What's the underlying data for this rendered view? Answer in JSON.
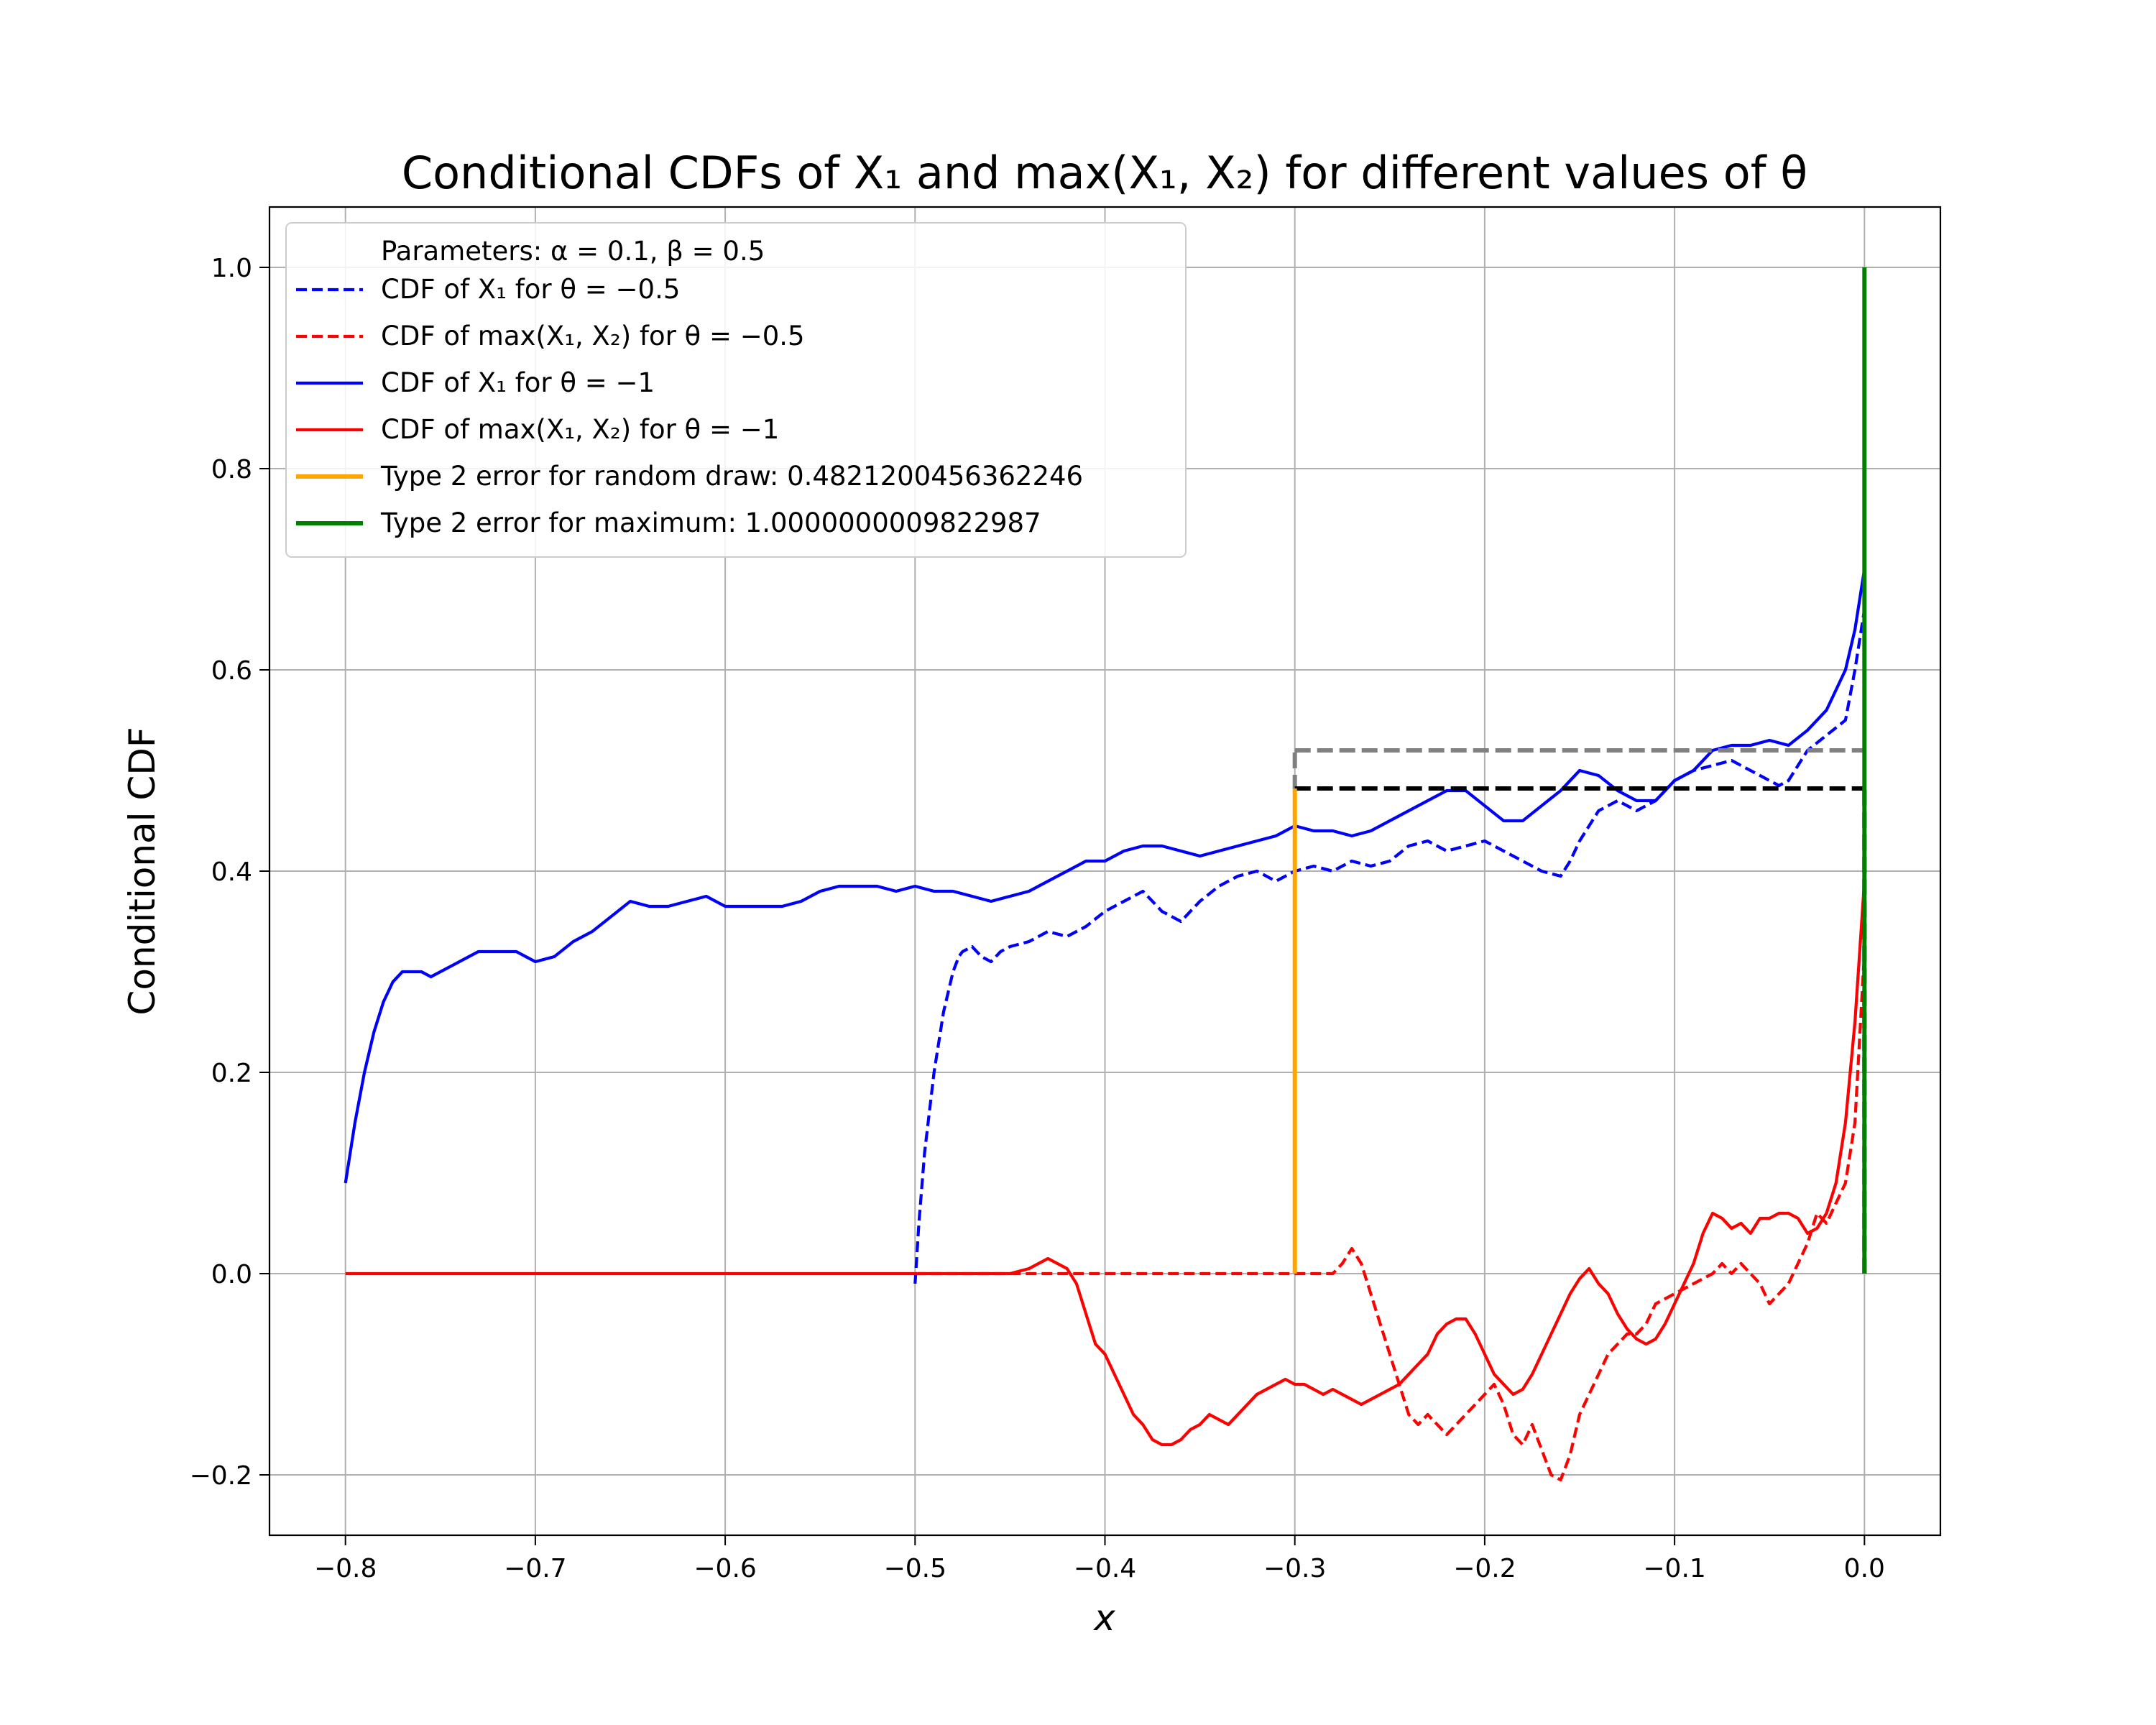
{
  "chart_data": {
    "type": "line",
    "title": "Conditional CDFs of X₁ and max(X₁, X₂) for different values of θ",
    "xlabel": "x",
    "ylabel": "Conditional CDF",
    "xlim": [
      -0.84,
      0.04
    ],
    "ylim": [
      -0.26,
      1.06
    ],
    "grid": true,
    "legend_position": "upper-left",
    "x_ticks": [
      {
        "value": -0.8,
        "label": "−0.8"
      },
      {
        "value": -0.7,
        "label": "−0.7"
      },
      {
        "value": -0.6,
        "label": "−0.6"
      },
      {
        "value": -0.5,
        "label": "−0.5"
      },
      {
        "value": -0.4,
        "label": "−0.4"
      },
      {
        "value": -0.3,
        "label": "−0.3"
      },
      {
        "value": -0.2,
        "label": "−0.2"
      },
      {
        "value": -0.1,
        "label": "−0.1"
      },
      {
        "value": 0.0,
        "label": "0.0"
      }
    ],
    "y_ticks": [
      {
        "value": -0.2,
        "label": "−0.2"
      },
      {
        "value": 0.0,
        "label": "0.0"
      },
      {
        "value": 0.2,
        "label": "0.2"
      },
      {
        "value": 0.4,
        "label": "0.4"
      },
      {
        "value": 0.6,
        "label": "0.6"
      },
      {
        "value": 0.8,
        "label": "0.8"
      },
      {
        "value": 1.0,
        "label": "1.0"
      }
    ],
    "legend_header": "Parameters: α = 0.1, β = 0.5",
    "series": [
      {
        "name": "CDF of X₁ for θ = −0.5",
        "color": "#0000ff",
        "style": "dashed",
        "x": [
          -0.5,
          -0.498,
          -0.495,
          -0.49,
          -0.485,
          -0.48,
          -0.477,
          -0.475,
          -0.47,
          -0.465,
          -0.46,
          -0.455,
          -0.45,
          -0.44,
          -0.43,
          -0.42,
          -0.41,
          -0.4,
          -0.39,
          -0.38,
          -0.37,
          -0.36,
          -0.35,
          -0.34,
          -0.33,
          -0.32,
          -0.31,
          -0.3,
          -0.29,
          -0.28,
          -0.27,
          -0.26,
          -0.25,
          -0.24,
          -0.23,
          -0.22,
          -0.21,
          -0.2,
          -0.19,
          -0.18,
          -0.17,
          -0.16,
          -0.155,
          -0.15,
          -0.14,
          -0.13,
          -0.12,
          -0.11,
          -0.1,
          -0.09,
          -0.08,
          -0.07,
          -0.06,
          -0.05,
          -0.045,
          -0.04,
          -0.03,
          -0.02,
          -0.01,
          -0.005,
          0.0
        ],
        "y": [
          -0.01,
          0.05,
          0.12,
          0.2,
          0.26,
          0.3,
          0.315,
          0.32,
          0.325,
          0.315,
          0.31,
          0.32,
          0.325,
          0.33,
          0.34,
          0.335,
          0.345,
          0.36,
          0.37,
          0.38,
          0.36,
          0.35,
          0.37,
          0.385,
          0.395,
          0.4,
          0.39,
          0.4,
          0.405,
          0.4,
          0.41,
          0.405,
          0.41,
          0.425,
          0.43,
          0.42,
          0.425,
          0.43,
          0.42,
          0.41,
          0.4,
          0.395,
          0.41,
          0.43,
          0.46,
          0.47,
          0.46,
          0.47,
          0.49,
          0.5,
          0.505,
          0.51,
          0.5,
          0.49,
          0.485,
          0.49,
          0.52,
          0.535,
          0.55,
          0.6,
          0.66
        ]
      },
      {
        "name": "CDF of max(X₁, X₂) for θ = −0.5",
        "color": "#ff0000",
        "style": "dashed",
        "x": [
          -0.5,
          -0.45,
          -0.4,
          -0.35,
          -0.3,
          -0.28,
          -0.275,
          -0.27,
          -0.265,
          -0.26,
          -0.255,
          -0.25,
          -0.245,
          -0.24,
          -0.235,
          -0.23,
          -0.22,
          -0.215,
          -0.21,
          -0.205,
          -0.2,
          -0.195,
          -0.19,
          -0.185,
          -0.18,
          -0.175,
          -0.17,
          -0.165,
          -0.16,
          -0.155,
          -0.15,
          -0.145,
          -0.14,
          -0.135,
          -0.13,
          -0.125,
          -0.12,
          -0.115,
          -0.11,
          -0.1,
          -0.09,
          -0.08,
          -0.075,
          -0.07,
          -0.065,
          -0.06,
          -0.055,
          -0.05,
          -0.045,
          -0.04,
          -0.035,
          -0.03,
          -0.025,
          -0.02,
          -0.015,
          -0.01,
          -0.005,
          0.0
        ],
        "y": [
          0.0,
          0.0,
          0.0,
          0.0,
          0.0,
          0.0,
          0.01,
          0.025,
          0.01,
          -0.02,
          -0.05,
          -0.08,
          -0.11,
          -0.14,
          -0.15,
          -0.14,
          -0.16,
          -0.15,
          -0.14,
          -0.13,
          -0.12,
          -0.11,
          -0.13,
          -0.16,
          -0.17,
          -0.15,
          -0.175,
          -0.2,
          -0.205,
          -0.18,
          -0.14,
          -0.12,
          -0.1,
          -0.08,
          -0.07,
          -0.06,
          -0.06,
          -0.05,
          -0.03,
          -0.02,
          -0.01,
          0.0,
          0.01,
          0.0,
          0.01,
          0.0,
          -0.01,
          -0.03,
          -0.02,
          -0.01,
          0.01,
          0.03,
          0.06,
          0.05,
          0.07,
          0.09,
          0.15,
          0.32
        ]
      },
      {
        "name": "CDF of X₁ for θ = −1",
        "color": "#0000ff",
        "style": "solid",
        "x": [
          -0.8,
          -0.795,
          -0.79,
          -0.785,
          -0.78,
          -0.775,
          -0.77,
          -0.765,
          -0.76,
          -0.755,
          -0.75,
          -0.74,
          -0.73,
          -0.72,
          -0.71,
          -0.7,
          -0.69,
          -0.68,
          -0.67,
          -0.66,
          -0.65,
          -0.64,
          -0.63,
          -0.62,
          -0.61,
          -0.6,
          -0.59,
          -0.58,
          -0.57,
          -0.56,
          -0.55,
          -0.54,
          -0.53,
          -0.52,
          -0.51,
          -0.5,
          -0.49,
          -0.48,
          -0.47,
          -0.46,
          -0.45,
          -0.44,
          -0.43,
          -0.42,
          -0.41,
          -0.4,
          -0.39,
          -0.38,
          -0.37,
          -0.36,
          -0.35,
          -0.34,
          -0.33,
          -0.32,
          -0.31,
          -0.3,
          -0.29,
          -0.28,
          -0.27,
          -0.26,
          -0.25,
          -0.24,
          -0.23,
          -0.22,
          -0.21,
          -0.2,
          -0.19,
          -0.18,
          -0.17,
          -0.16,
          -0.15,
          -0.14,
          -0.13,
          -0.12,
          -0.11,
          -0.1,
          -0.09,
          -0.08,
          -0.07,
          -0.06,
          -0.05,
          -0.04,
          -0.03,
          -0.02,
          -0.01,
          -0.005,
          0.0
        ],
        "y": [
          0.09,
          0.15,
          0.2,
          0.24,
          0.27,
          0.29,
          0.3,
          0.3,
          0.3,
          0.295,
          0.3,
          0.31,
          0.32,
          0.32,
          0.32,
          0.31,
          0.315,
          0.33,
          0.34,
          0.355,
          0.37,
          0.365,
          0.365,
          0.37,
          0.375,
          0.365,
          0.365,
          0.365,
          0.365,
          0.37,
          0.38,
          0.385,
          0.385,
          0.385,
          0.38,
          0.385,
          0.38,
          0.38,
          0.375,
          0.37,
          0.375,
          0.38,
          0.39,
          0.4,
          0.41,
          0.41,
          0.42,
          0.425,
          0.425,
          0.42,
          0.415,
          0.42,
          0.425,
          0.43,
          0.435,
          0.445,
          0.44,
          0.44,
          0.435,
          0.44,
          0.45,
          0.46,
          0.47,
          0.48,
          0.48,
          0.465,
          0.45,
          0.45,
          0.465,
          0.48,
          0.5,
          0.495,
          0.48,
          0.47,
          0.47,
          0.49,
          0.5,
          0.52,
          0.525,
          0.525,
          0.53,
          0.525,
          0.54,
          0.56,
          0.6,
          0.64,
          0.7
        ]
      },
      {
        "name": "CDF of max(X₁, X₂) for θ = −1",
        "color": "#ff0000",
        "style": "solid",
        "x": [
          -0.8,
          -0.75,
          -0.7,
          -0.65,
          -0.6,
          -0.55,
          -0.5,
          -0.45,
          -0.44,
          -0.435,
          -0.43,
          -0.425,
          -0.42,
          -0.415,
          -0.41,
          -0.405,
          -0.4,
          -0.395,
          -0.39,
          -0.385,
          -0.38,
          -0.375,
          -0.37,
          -0.365,
          -0.36,
          -0.355,
          -0.35,
          -0.345,
          -0.34,
          -0.335,
          -0.33,
          -0.325,
          -0.32,
          -0.315,
          -0.31,
          -0.305,
          -0.3,
          -0.295,
          -0.29,
          -0.285,
          -0.28,
          -0.275,
          -0.27,
          -0.265,
          -0.26,
          -0.255,
          -0.25,
          -0.245,
          -0.24,
          -0.235,
          -0.23,
          -0.225,
          -0.22,
          -0.215,
          -0.21,
          -0.205,
          -0.2,
          -0.195,
          -0.19,
          -0.185,
          -0.18,
          -0.175,
          -0.17,
          -0.165,
          -0.16,
          -0.155,
          -0.15,
          -0.145,
          -0.14,
          -0.135,
          -0.13,
          -0.125,
          -0.12,
          -0.115,
          -0.11,
          -0.105,
          -0.1,
          -0.095,
          -0.09,
          -0.085,
          -0.08,
          -0.075,
          -0.07,
          -0.065,
          -0.06,
          -0.055,
          -0.05,
          -0.045,
          -0.04,
          -0.035,
          -0.03,
          -0.025,
          -0.02,
          -0.015,
          -0.01,
          -0.005,
          0.0
        ],
        "y": [
          0.0,
          0.0,
          0.0,
          0.0,
          0.0,
          0.0,
          0.0,
          0.0,
          0.005,
          0.01,
          0.015,
          0.01,
          0.005,
          -0.01,
          -0.04,
          -0.07,
          -0.08,
          -0.1,
          -0.12,
          -0.14,
          -0.15,
          -0.165,
          -0.17,
          -0.17,
          -0.165,
          -0.155,
          -0.15,
          -0.14,
          -0.145,
          -0.15,
          -0.14,
          -0.13,
          -0.12,
          -0.115,
          -0.11,
          -0.105,
          -0.11,
          -0.11,
          -0.115,
          -0.12,
          -0.115,
          -0.12,
          -0.125,
          -0.13,
          -0.125,
          -0.12,
          -0.115,
          -0.11,
          -0.1,
          -0.09,
          -0.08,
          -0.06,
          -0.05,
          -0.045,
          -0.045,
          -0.06,
          -0.08,
          -0.1,
          -0.11,
          -0.12,
          -0.115,
          -0.1,
          -0.08,
          -0.06,
          -0.04,
          -0.02,
          -0.005,
          0.005,
          -0.01,
          -0.02,
          -0.04,
          -0.055,
          -0.065,
          -0.07,
          -0.065,
          -0.05,
          -0.03,
          -0.01,
          0.01,
          0.04,
          0.06,
          0.055,
          0.045,
          0.05,
          0.04,
          0.055,
          0.055,
          0.06,
          0.06,
          0.055,
          0.04,
          0.045,
          0.06,
          0.09,
          0.15,
          0.25,
          0.39
        ]
      }
    ],
    "type2_random": {
      "name": "Type 2 error for random draw: 0.4821200456362246",
      "color": "#ffa500",
      "x": -0.3,
      "y_from": 0.0,
      "y_to": 0.4821200456362246
    },
    "type2_maximum": {
      "name": "Type 2 error for maximum: 1.0000000009822987",
      "color": "#008000",
      "x": 0.0,
      "y_from": 0.0,
      "y_to": 1.0
    },
    "reference_lines": [
      {
        "color": "#808080",
        "style": "dashed",
        "kind": "horizontal",
        "y": 0.52,
        "x_from": -0.3,
        "x_to": 0.0
      },
      {
        "color": "#808080",
        "style": "dashed",
        "kind": "vertical",
        "x": -0.3,
        "y_from": 0.48,
        "y_to": 0.52
      },
      {
        "color": "#000000",
        "style": "dashed",
        "kind": "horizontal",
        "y": 0.4821200456362246,
        "x_from": -0.3,
        "x_to": 0.0
      },
      {
        "color": "#000000",
        "style": "dashed",
        "kind": "vertical",
        "x": 0.0,
        "y_from": 0.0,
        "y_to": 0.4821200456362246
      }
    ]
  }
}
